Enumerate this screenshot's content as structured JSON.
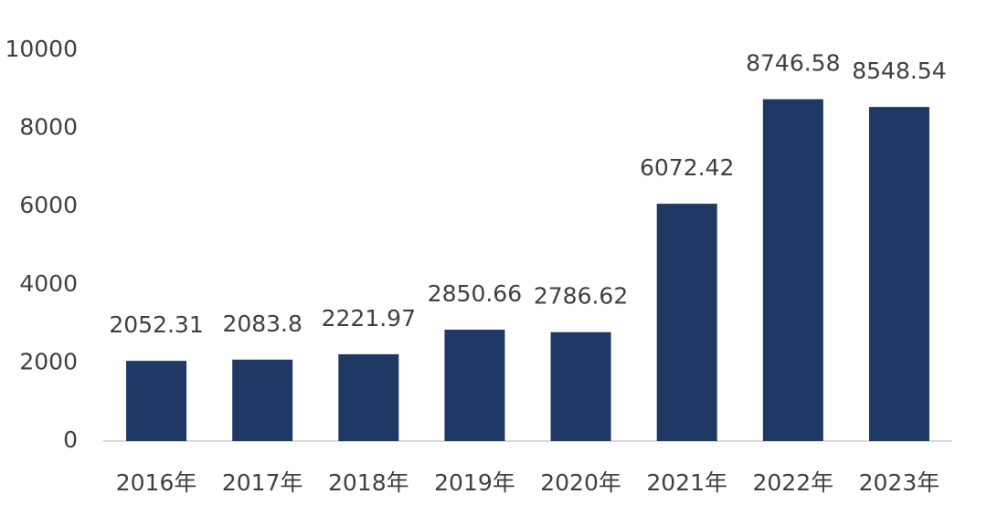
{
  "chart_data": {
    "type": "bar",
    "categories": [
      "2016年",
      "2017年",
      "2018年",
      "2019年",
      "2020年",
      "2021年",
      "2022年",
      "2023年"
    ],
    "values": [
      2052.31,
      2083.8,
      2221.97,
      2850.66,
      2786.62,
      6072.42,
      8746.58,
      8548.54
    ],
    "color": "#203864",
    "ylim": [
      0,
      10000
    ],
    "yticks": [
      0,
      2000,
      4000,
      6000,
      8000,
      10000
    ],
    "grid": false
  }
}
